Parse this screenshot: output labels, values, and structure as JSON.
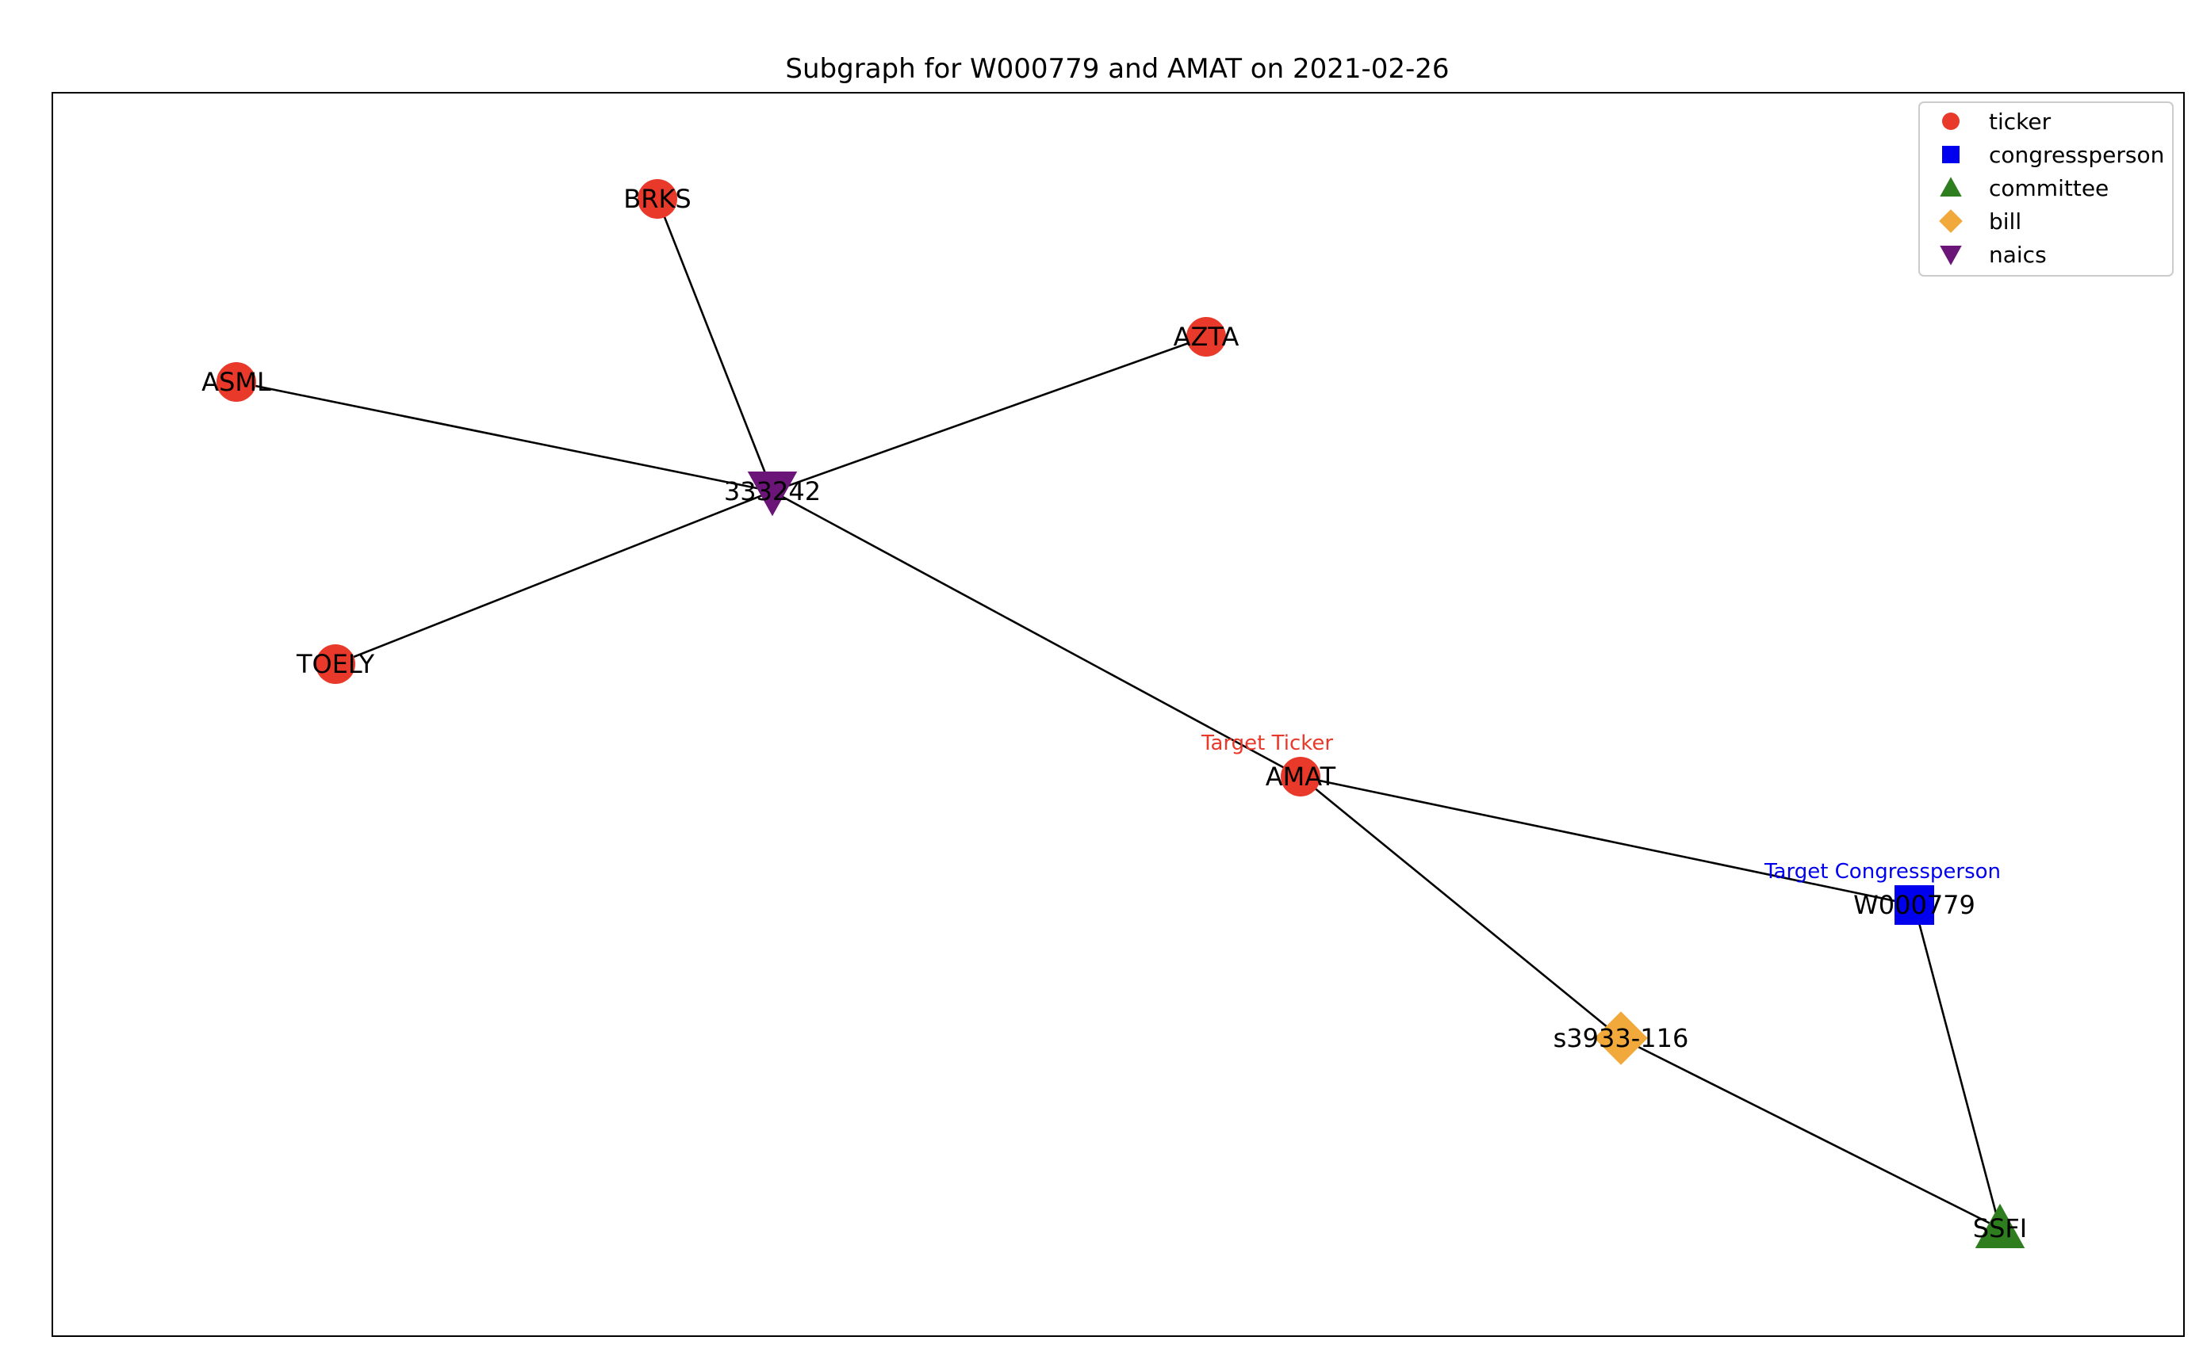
{
  "title": "Subgraph for W000779 and AMAT on 2021-02-26",
  "legend": {
    "placement": "top-right",
    "items": [
      {
        "type": "ticker",
        "label": "ticker",
        "shape": "circle",
        "color": "#e8392a"
      },
      {
        "type": "congressperson",
        "label": "congressperson",
        "shape": "square",
        "color": "#0000ee"
      },
      {
        "type": "committee",
        "label": "committee",
        "shape": "triangle-up",
        "color": "#2e7d1e"
      },
      {
        "type": "bill",
        "label": "bill",
        "shape": "diamond",
        "color": "#f0a93a"
      },
      {
        "type": "naics",
        "label": "naics",
        "shape": "triangle-down",
        "color": "#6a1577"
      }
    ]
  },
  "nodes": [
    {
      "id": "BRKS",
      "label": "BRKS",
      "type": "ticker"
    },
    {
      "id": "AZTA",
      "label": "AZTA",
      "type": "ticker"
    },
    {
      "id": "ASML",
      "label": "ASML",
      "type": "ticker"
    },
    {
      "id": "333242",
      "label": "333242",
      "type": "naics"
    },
    {
      "id": "TOELY",
      "label": "TOELY",
      "type": "ticker"
    },
    {
      "id": "AMAT",
      "label": "AMAT",
      "type": "ticker",
      "annotation": "Target Ticker",
      "annotation_color": "#e8392a"
    },
    {
      "id": "W000779",
      "label": "W000779",
      "type": "congressperson",
      "annotation": "Target Congressperson",
      "annotation_color": "#0000ee"
    },
    {
      "id": "s3933-116",
      "label": "s3933-116",
      "type": "bill"
    },
    {
      "id": "SSFI",
      "label": "SSFI",
      "type": "committee"
    }
  ],
  "edges": [
    [
      "BRKS",
      "333242"
    ],
    [
      "ASML",
      "333242"
    ],
    [
      "AZTA",
      "333242"
    ],
    [
      "TOELY",
      "333242"
    ],
    [
      "333242",
      "AMAT"
    ],
    [
      "AMAT",
      "W000779"
    ],
    [
      "AMAT",
      "s3933-116"
    ],
    [
      "s3933-116",
      "SSFI"
    ],
    [
      "W000779",
      "SSFI"
    ]
  ]
}
